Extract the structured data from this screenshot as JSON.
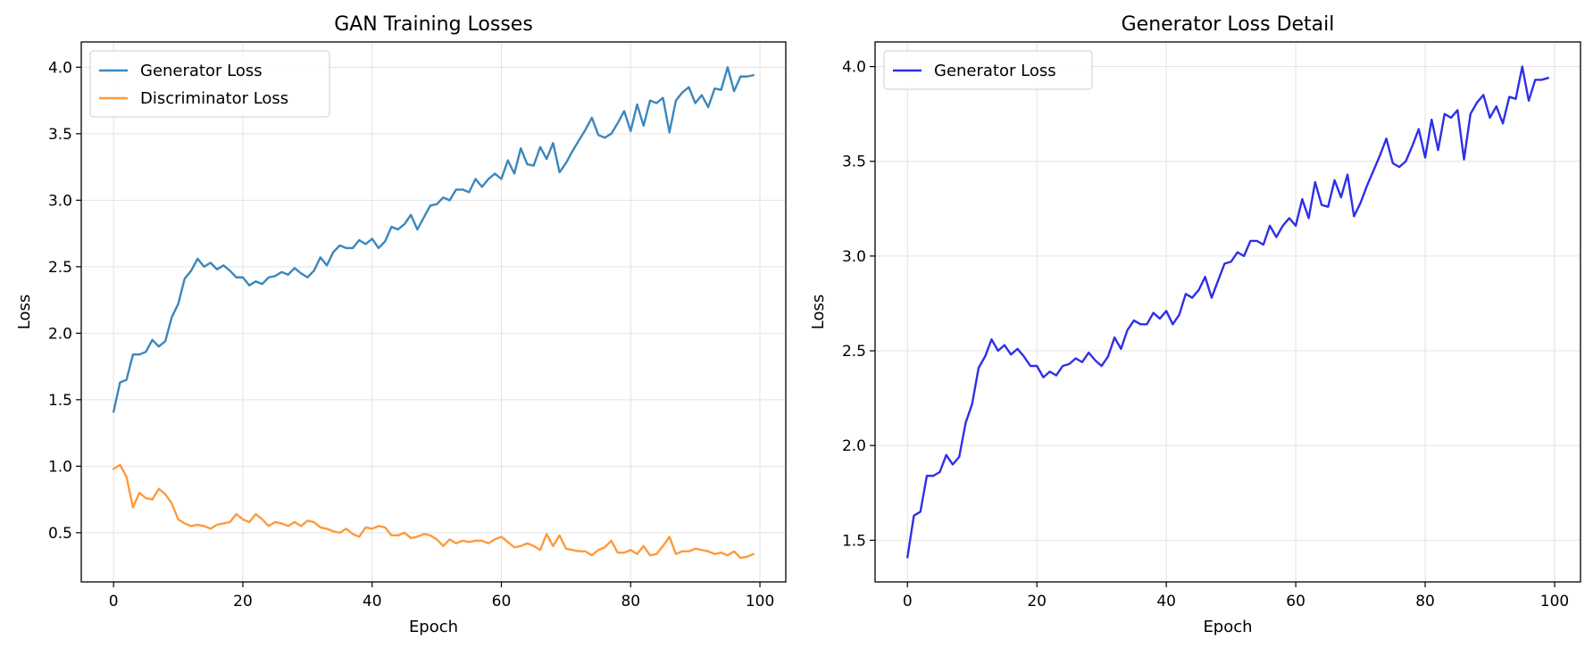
{
  "chart_data": [
    {
      "type": "line",
      "title": "GAN Training Losses",
      "xlabel": "Epoch",
      "ylabel": "Loss",
      "xlim": [
        -5,
        104
      ],
      "ylim": [
        0.13,
        4.19
      ],
      "xticks": [
        0,
        20,
        40,
        60,
        80,
        100
      ],
      "xtick_labels": [
        "0",
        "20",
        "40",
        "60",
        "80",
        "100"
      ],
      "yticks": [
        0.5,
        1.0,
        1.5,
        2.0,
        2.5,
        3.0,
        3.5,
        4.0
      ],
      "ytick_labels": [
        "0.5",
        "1.0",
        "1.5",
        "2.0",
        "2.5",
        "3.0",
        "3.5",
        "4.0"
      ],
      "grid": true,
      "legend_position": "top-left",
      "series": [
        {
          "name": "Generator Loss",
          "color": "#3b87bd",
          "values": [
            1.41,
            1.63,
            1.65,
            1.84,
            1.84,
            1.86,
            1.95,
            1.9,
            1.94,
            2.12,
            2.22,
            2.41,
            2.47,
            2.56,
            2.5,
            2.53,
            2.48,
            2.51,
            2.47,
            2.42,
            2.42,
            2.36,
            2.39,
            2.37,
            2.42,
            2.43,
            2.46,
            2.44,
            2.49,
            2.45,
            2.42,
            2.47,
            2.57,
            2.51,
            2.61,
            2.66,
            2.64,
            2.64,
            2.7,
            2.67,
            2.71,
            2.64,
            2.69,
            2.8,
            2.78,
            2.82,
            2.89,
            2.78,
            2.87,
            2.96,
            2.97,
            3.02,
            3.0,
            3.08,
            3.08,
            3.06,
            3.16,
            3.1,
            3.16,
            3.2,
            3.16,
            3.3,
            3.2,
            3.39,
            3.27,
            3.26,
            3.4,
            3.31,
            3.43,
            3.21,
            3.28,
            3.37,
            3.45,
            3.53,
            3.62,
            3.49,
            3.47,
            3.5,
            3.58,
            3.67,
            3.52,
            3.72,
            3.56,
            3.75,
            3.73,
            3.77,
            3.51,
            3.75,
            3.81,
            3.85,
            3.73,
            3.79,
            3.7,
            3.84,
            3.83,
            4.0,
            3.82,
            3.93,
            3.93,
            3.94
          ]
        },
        {
          "name": "Discriminator Loss",
          "color": "#ff9a3d",
          "values": [
            0.98,
            1.01,
            0.92,
            0.69,
            0.8,
            0.76,
            0.75,
            0.83,
            0.79,
            0.72,
            0.6,
            0.57,
            0.55,
            0.56,
            0.55,
            0.53,
            0.56,
            0.57,
            0.58,
            0.64,
            0.6,
            0.58,
            0.64,
            0.6,
            0.55,
            0.58,
            0.57,
            0.55,
            0.58,
            0.55,
            0.59,
            0.58,
            0.54,
            0.53,
            0.51,
            0.5,
            0.53,
            0.49,
            0.47,
            0.54,
            0.53,
            0.55,
            0.54,
            0.48,
            0.48,
            0.5,
            0.46,
            0.47,
            0.49,
            0.48,
            0.45,
            0.4,
            0.45,
            0.42,
            0.44,
            0.43,
            0.44,
            0.44,
            0.42,
            0.45,
            0.47,
            0.43,
            0.39,
            0.4,
            0.42,
            0.4,
            0.37,
            0.49,
            0.4,
            0.48,
            0.38,
            0.37,
            0.36,
            0.36,
            0.33,
            0.37,
            0.39,
            0.44,
            0.35,
            0.35,
            0.37,
            0.34,
            0.4,
            0.33,
            0.34,
            0.4,
            0.47,
            0.34,
            0.36,
            0.36,
            0.38,
            0.37,
            0.36,
            0.34,
            0.35,
            0.33,
            0.36,
            0.31,
            0.32,
            0.34
          ]
        }
      ]
    },
    {
      "type": "line",
      "title": "Generator Loss Detail",
      "xlabel": "Epoch",
      "ylabel": "Loss",
      "xlim": [
        -5,
        104
      ],
      "ylim": [
        1.28,
        4.13
      ],
      "xticks": [
        0,
        20,
        40,
        60,
        80,
        100
      ],
      "xtick_labels": [
        "0",
        "20",
        "40",
        "60",
        "80",
        "100"
      ],
      "yticks": [
        1.5,
        2.0,
        2.5,
        3.0,
        3.5,
        4.0
      ],
      "ytick_labels": [
        "1.5",
        "2.0",
        "2.5",
        "3.0",
        "3.5",
        "4.0"
      ],
      "grid": true,
      "legend_position": "top-left",
      "series": [
        {
          "name": "Generator Loss",
          "color": "#2f2fe8",
          "values": [
            1.41,
            1.63,
            1.65,
            1.84,
            1.84,
            1.86,
            1.95,
            1.9,
            1.94,
            2.12,
            2.22,
            2.41,
            2.47,
            2.56,
            2.5,
            2.53,
            2.48,
            2.51,
            2.47,
            2.42,
            2.42,
            2.36,
            2.39,
            2.37,
            2.42,
            2.43,
            2.46,
            2.44,
            2.49,
            2.45,
            2.42,
            2.47,
            2.57,
            2.51,
            2.61,
            2.66,
            2.64,
            2.64,
            2.7,
            2.67,
            2.71,
            2.64,
            2.69,
            2.8,
            2.78,
            2.82,
            2.89,
            2.78,
            2.87,
            2.96,
            2.97,
            3.02,
            3.0,
            3.08,
            3.08,
            3.06,
            3.16,
            3.1,
            3.16,
            3.2,
            3.16,
            3.3,
            3.2,
            3.39,
            3.27,
            3.26,
            3.4,
            3.31,
            3.43,
            3.21,
            3.28,
            3.37,
            3.45,
            3.53,
            3.62,
            3.49,
            3.47,
            3.5,
            3.58,
            3.67,
            3.52,
            3.72,
            3.56,
            3.75,
            3.73,
            3.77,
            3.51,
            3.75,
            3.81,
            3.85,
            3.73,
            3.79,
            3.7,
            3.84,
            3.83,
            4.0,
            3.82,
            3.93,
            3.93,
            3.94
          ]
        }
      ]
    }
  ]
}
